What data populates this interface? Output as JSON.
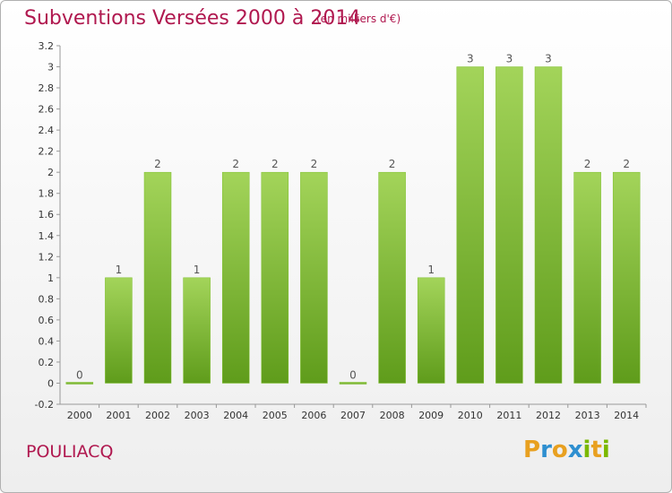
{
  "title": "Subventions Versées 2000 à 2014",
  "subtitle": "(en milliers d'€)",
  "commune": "POULIACQ",
  "logo": {
    "text": "Proxiti",
    "letters": [
      "P",
      "r",
      "o",
      "x",
      "i",
      "t",
      "i"
    ],
    "colors": [
      "#e8a020",
      "#2e8fd0",
      "#e8a020",
      "#2e8fd0",
      "#7ab800",
      "#e8a020",
      "#7ab800"
    ]
  },
  "chart_data": {
    "type": "bar",
    "categories": [
      "2000",
      "2001",
      "2002",
      "2003",
      "2004",
      "2005",
      "2006",
      "2007",
      "2008",
      "2009",
      "2010",
      "2011",
      "2012",
      "2013",
      "2014"
    ],
    "values": [
      0,
      1,
      2,
      1,
      2,
      2,
      2,
      0,
      2,
      1,
      3,
      3,
      3,
      2,
      2
    ],
    "data_labels": [
      "0",
      "1",
      "2",
      "1",
      "2",
      "2",
      "2",
      "0",
      "2",
      "1",
      "3",
      "3",
      "3",
      "2",
      "2"
    ],
    "y_ticks": [
      "-0.2",
      "0",
      "0.2",
      "0.4",
      "0.6",
      "0.8",
      "1",
      "1.2",
      "1.4",
      "1.6",
      "1.8",
      "2",
      "2.2",
      "2.4",
      "2.6",
      "2.8",
      "3",
      "3.2"
    ],
    "ylim": [
      -0.2,
      3.2
    ],
    "xlabel": "",
    "ylabel": "",
    "grid": false,
    "bar_color": "#7cbf2a",
    "bar_color_light": "#a3d45a",
    "bar_color_dark": "#5f9c1b"
  }
}
